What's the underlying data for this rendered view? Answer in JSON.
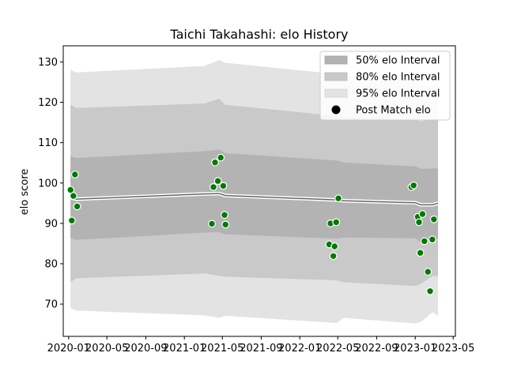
{
  "chart_data": {
    "type": "line",
    "title": "Taichi Takahashi: elo History",
    "xlabel": "",
    "ylabel": "elo score",
    "xlim": [
      "2019-12-15",
      "2023-05-08"
    ],
    "ylim": [
      62,
      134
    ],
    "x_ticks": [
      {
        "date": "2020-01-01",
        "label": "2020-01"
      },
      {
        "date": "2020-05-01",
        "label": "2020-05"
      },
      {
        "date": "2020-09-01",
        "label": "2020-09"
      },
      {
        "date": "2021-01-01",
        "label": "2021-01"
      },
      {
        "date": "2021-05-01",
        "label": "2021-05"
      },
      {
        "date": "2021-09-01",
        "label": "2021-09"
      },
      {
        "date": "2022-01-01",
        "label": "2022-01"
      },
      {
        "date": "2022-05-01",
        "label": "2022-05"
      },
      {
        "date": "2022-09-01",
        "label": "2022-09"
      },
      {
        "date": "2023-01-01",
        "label": "2023-01"
      },
      {
        "date": "2023-05-01",
        "label": "2023-05"
      }
    ],
    "y_ticks": [
      70,
      80,
      90,
      100,
      110,
      120,
      130
    ],
    "legend": {
      "position": "top-right",
      "entries": [
        {
          "label": "50% elo Interval",
          "key": "band50"
        },
        {
          "label": "80% elo Interval",
          "key": "band80"
        },
        {
          "label": "95% elo Interval",
          "key": "band95"
        },
        {
          "label": "Post Match elo",
          "key": "points"
        }
      ]
    },
    "colors": {
      "band50": "#b3b3b3",
      "band80": "#c9c9c9",
      "band95": "#e3e3e3",
      "median_line": "#666666",
      "median_halo": "#ffffff",
      "point_fill": "#007a00",
      "point_edge": "#ffffff"
    },
    "series": [
      {
        "name": "Median elo",
        "x": [
          "2020-01-07",
          "2020-01-25",
          "2021-03-06",
          "2021-04-21",
          "2021-05-10",
          "2022-04-28",
          "2022-05-20",
          "2023-01-01",
          "2023-01-19",
          "2023-02-25",
          "2023-03-14"
        ],
        "y": [
          96.4,
          96.0,
          97.3,
          97.4,
          96.9,
          95.8,
          95.6,
          95.1,
          94.6,
          94.6,
          95.0
        ]
      },
      {
        "name": "50% elo Interval",
        "x": [
          "2020-01-07",
          "2020-01-25",
          "2021-03-06",
          "2021-04-21",
          "2021-05-10",
          "2022-04-28",
          "2022-05-20",
          "2023-01-01",
          "2023-01-19",
          "2023-02-25",
          "2023-03-14"
        ],
        "low": [
          86.3,
          85.9,
          87.7,
          87.8,
          87.3,
          86.2,
          86.5,
          86.3,
          85.3,
          85.4,
          86.2
        ],
        "high": [
          106.6,
          106.2,
          107.9,
          108.3,
          107.4,
          105.6,
          105.1,
          104.1,
          103.5,
          103.6,
          103.6
        ]
      },
      {
        "name": "80% elo Interval",
        "x": [
          "2020-01-07",
          "2020-01-25",
          "2021-03-06",
          "2021-04-21",
          "2021-05-10",
          "2022-04-28",
          "2022-05-20",
          "2023-01-01",
          "2023-01-19",
          "2023-02-25",
          "2023-03-14"
        ],
        "low": [
          75.4,
          76.4,
          77.6,
          77.0,
          76.8,
          75.9,
          75.4,
          74.5,
          75.0,
          77.0,
          76.9
        ],
        "high": [
          119.4,
          118.6,
          119.7,
          120.9,
          119.4,
          116.6,
          116.4,
          115.6,
          115.3,
          115.8,
          116.1
        ]
      },
      {
        "name": "95% elo Interval",
        "x": [
          "2020-01-07",
          "2020-01-25",
          "2021-03-06",
          "2021-04-21",
          "2021-05-10",
          "2022-04-28",
          "2022-05-20",
          "2023-01-01",
          "2023-01-19",
          "2023-02-25",
          "2023-03-14"
        ],
        "low": [
          69.0,
          68.4,
          67.2,
          66.6,
          67.1,
          65.3,
          66.6,
          65.2,
          65.6,
          68.0,
          67.1
        ],
        "high": [
          128.1,
          127.4,
          129.0,
          130.5,
          129.8,
          127.0,
          126.6,
          125.4,
          124.2,
          124.1,
          124.9
        ]
      },
      {
        "name": "Post Match elo",
        "type": "scatter",
        "x": [
          "2020-01-07",
          "2020-01-11",
          "2020-01-16",
          "2020-01-21",
          "2020-01-28",
          "2021-03-29",
          "2021-04-03",
          "2021-04-08",
          "2021-04-17",
          "2021-04-26",
          "2021-05-04",
          "2021-05-08",
          "2021-05-11",
          "2022-04-04",
          "2022-04-08",
          "2022-04-17",
          "2022-04-21",
          "2022-04-26",
          "2022-05-03",
          "2022-12-20",
          "2022-12-27",
          "2023-01-09",
          "2023-01-13",
          "2023-01-17",
          "2023-01-24",
          "2023-01-30",
          "2023-02-10",
          "2023-02-17",
          "2023-02-24",
          "2023-03-01"
        ],
        "y": [
          98.3,
          90.7,
          96.8,
          102.1,
          94.2,
          89.9,
          99.0,
          105.1,
          100.5,
          106.3,
          99.3,
          92.1,
          89.7,
          84.8,
          90.0,
          81.9,
          84.3,
          90.3,
          96.2,
          99.0,
          99.4,
          91.6,
          90.3,
          82.7,
          92.3,
          85.6,
          78.0,
          73.2,
          86.0,
          91.0
        ]
      }
    ]
  }
}
